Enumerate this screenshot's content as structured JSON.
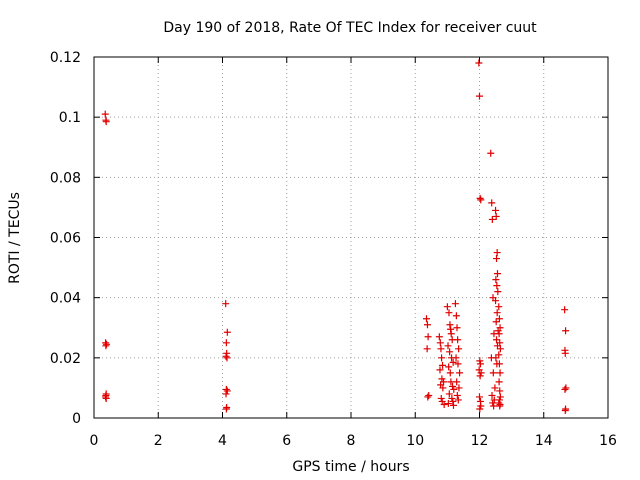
{
  "chart_data": {
    "type": "scatter",
    "title": "Day 190 of 2018, Rate Of TEC Index for receiver cuut",
    "xlabel": "GPS time / hours",
    "ylabel": "ROTI / TECUs",
    "xlim": [
      0,
      16
    ],
    "ylim": [
      0,
      0.12
    ],
    "x_ticks": [
      0,
      2,
      4,
      6,
      8,
      10,
      12,
      14,
      16
    ],
    "x_tick_labels": [
      "0",
      "2",
      "4",
      "6",
      "8",
      "10",
      "12",
      "14",
      "16"
    ],
    "y_ticks": [
      0,
      0.02,
      0.04,
      0.06,
      0.08,
      0.1,
      0.12
    ],
    "y_tick_labels": [
      "0",
      "0.02",
      "0.04",
      "0.06",
      "0.08",
      "0.1",
      "0.12"
    ],
    "grid": true,
    "marker": "+",
    "colors": {
      "points": "#e00000",
      "grid": "#a0a0a0",
      "axes": "#000000"
    },
    "series": [
      {
        "name": "ROTI",
        "x": [
          0.35,
          0.37,
          0.38,
          0.36,
          0.39,
          0.37,
          0.38,
          0.36,
          0.38,
          0.37,
          4.1,
          4.15,
          4.12,
          4.13,
          4.11,
          4.14,
          4.12,
          4.15,
          4.11,
          4.13,
          4.12,
          10.35,
          10.38,
          10.4,
          10.37,
          10.42,
          10.39,
          10.75,
          10.78,
          10.8,
          10.82,
          10.85,
          10.77,
          10.83,
          10.88,
          10.79,
          10.86,
          10.81,
          10.84,
          10.9,
          11.0,
          11.05,
          11.08,
          11.1,
          11.12,
          11.15,
          11.02,
          11.07,
          11.13,
          11.18,
          11.04,
          11.09,
          11.11,
          11.16,
          11.2,
          11.06,
          11.14,
          11.17,
          11.03,
          11.19,
          11.25,
          11.28,
          11.3,
          11.32,
          11.35,
          11.27,
          11.33,
          11.38,
          11.29,
          11.36,
          11.31,
          11.34,
          11.98,
          12.0,
          12.02,
          12.04,
          12.01,
          12.03,
          11.99,
          12.05,
          12.02,
          12.0,
          12.03,
          12.04,
          12.01,
          12.35,
          12.38,
          12.4,
          12.42,
          12.45,
          12.37,
          12.43,
          12.48,
          12.39,
          12.46,
          12.41,
          12.44,
          12.5,
          12.52,
          12.55,
          12.53,
          12.56,
          12.51,
          12.54,
          12.57,
          12.5,
          12.55,
          12.52,
          12.58,
          12.53,
          12.56,
          12.51,
          12.54,
          12.6,
          12.62,
          12.64,
          12.61,
          12.63,
          12.65,
          12.6,
          12.62,
          12.64,
          12.61,
          12.63,
          12.65,
          12.62,
          12.6,
          12.64,
          12.63,
          14.65,
          14.68,
          14.66,
          14.67,
          14.69,
          14.66,
          14.68,
          14.67
        ],
        "y": [
          0.101,
          0.099,
          0.0985,
          0.025,
          0.0245,
          0.024,
          0.008,
          0.007,
          0.0065,
          0.0075,
          0.038,
          0.0285,
          0.025,
          0.0215,
          0.0205,
          0.02,
          0.0095,
          0.009,
          0.008,
          0.0035,
          0.003,
          0.033,
          0.031,
          0.027,
          0.023,
          0.0075,
          0.007,
          0.027,
          0.025,
          0.023,
          0.02,
          0.0175,
          0.016,
          0.013,
          0.012,
          0.011,
          0.01,
          0.0065,
          0.0055,
          0.0045,
          0.037,
          0.035,
          0.031,
          0.0295,
          0.028,
          0.026,
          0.024,
          0.022,
          0.02,
          0.0185,
          0.017,
          0.015,
          0.012,
          0.0105,
          0.0095,
          0.008,
          0.0065,
          0.0055,
          0.0048,
          0.0042,
          0.038,
          0.034,
          0.03,
          0.026,
          0.023,
          0.02,
          0.018,
          0.015,
          0.012,
          0.01,
          0.0075,
          0.006,
          0.118,
          0.107,
          0.073,
          0.0725,
          0.019,
          0.018,
          0.016,
          0.015,
          0.014,
          0.007,
          0.0055,
          0.004,
          0.003,
          0.088,
          0.0715,
          0.066,
          0.04,
          0.028,
          0.02,
          0.015,
          0.01,
          0.0075,
          0.006,
          0.005,
          0.004,
          0.069,
          0.067,
          0.055,
          0.053,
          0.048,
          0.046,
          0.044,
          0.042,
          0.039,
          0.035,
          0.032,
          0.029,
          0.026,
          0.024,
          0.02,
          0.018,
          0.037,
          0.033,
          0.03,
          0.028,
          0.025,
          0.023,
          0.021,
          0.018,
          0.015,
          0.012,
          0.009,
          0.007,
          0.006,
          0.005,
          0.0045,
          0.004,
          0.036,
          0.029,
          0.0225,
          0.0215,
          0.01,
          0.0095,
          0.003,
          0.0025
        ]
      }
    ]
  }
}
